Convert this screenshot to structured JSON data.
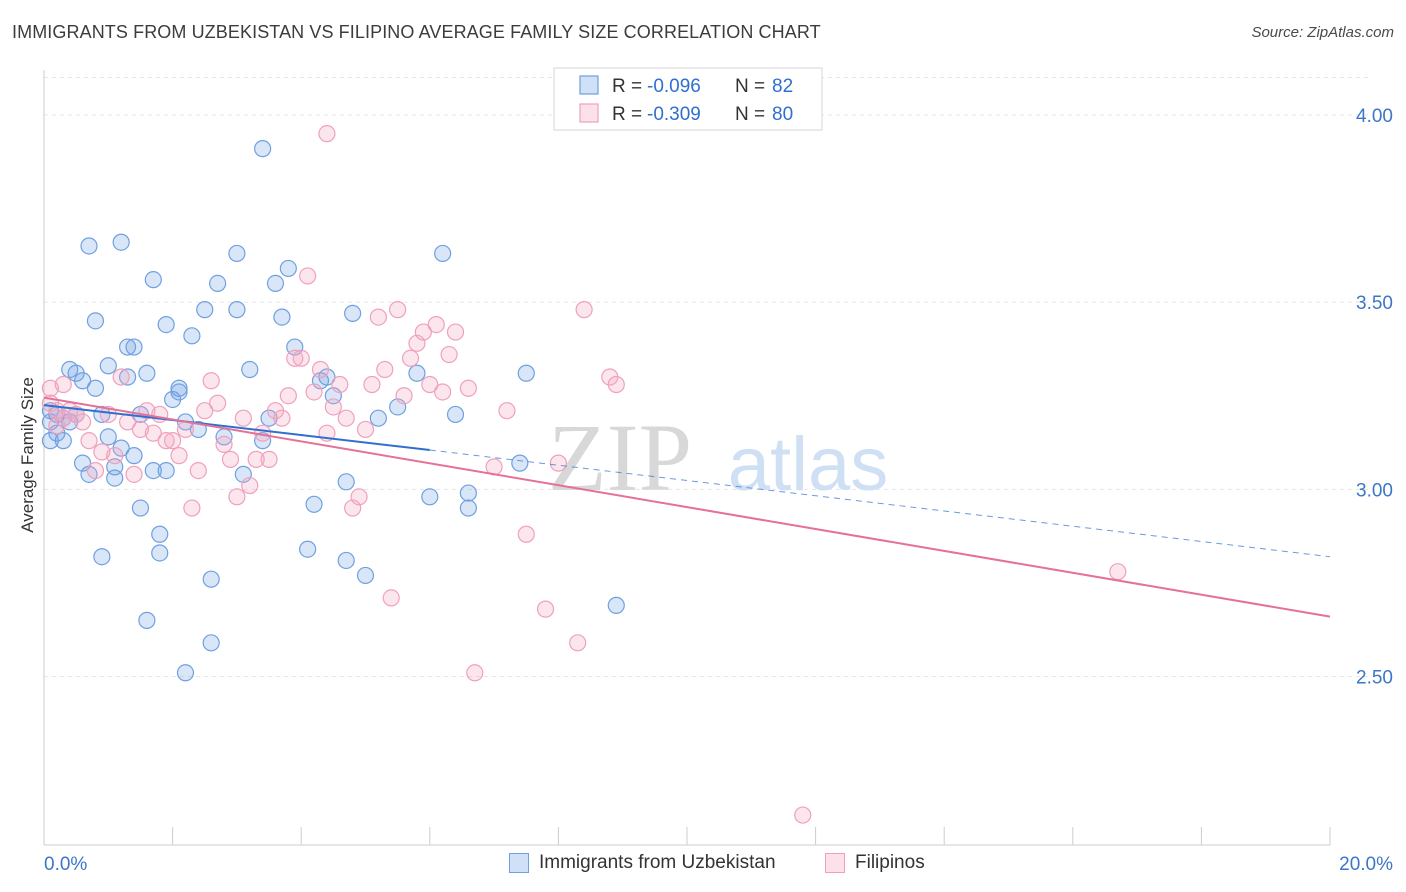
{
  "title": "IMMIGRANTS FROM UZBEKISTAN VS FILIPINO AVERAGE FAMILY SIZE CORRELATION CHART",
  "source": "Source: ZipAtlas.com",
  "watermark": {
    "zip": "ZIP",
    "atlas": "atlas"
  },
  "chart_data": {
    "type": "scatter",
    "ylabel": "Average Family Size",
    "xlim": [
      0,
      0.2
    ],
    "ylim": [
      2.05,
      4.12
    ],
    "x_tick_labels": [
      {
        "x": 0.0,
        "label": "0.0%"
      },
      {
        "x": 0.2,
        "label": "20.0%"
      }
    ],
    "x_minor_ticks": [
      0.02,
      0.04,
      0.06,
      0.08,
      0.1,
      0.12,
      0.14,
      0.16,
      0.18,
      0.2
    ],
    "y_ticks": [
      {
        "y": 4.0,
        "label": "4.00"
      },
      {
        "y": 3.5,
        "label": "3.50"
      },
      {
        "y": 3.0,
        "label": "3.00"
      },
      {
        "y": 2.5,
        "label": "2.50"
      }
    ],
    "grid": true,
    "legend_position": "top-center",
    "series": [
      {
        "name": "Immigrants from Uzbekistan",
        "color": "#6fa0e0",
        "fill": "rgba(120,165,230,0.28)",
        "line_color": "#2f6fd0",
        "R": "-0.096",
        "N": "82",
        "trend": {
          "x0": 0.0,
          "y0": 3.225,
          "x1": 0.06,
          "y1": 3.105,
          "dash_to_x": 0.2,
          "dash_to_y": 2.82
        },
        "points": [
          [
            0.001,
            3.21
          ],
          [
            0.001,
            3.18
          ],
          [
            0.001,
            3.13
          ],
          [
            0.002,
            3.2
          ],
          [
            0.002,
            3.15
          ],
          [
            0.003,
            3.13
          ],
          [
            0.003,
            3.19
          ],
          [
            0.004,
            3.32
          ],
          [
            0.004,
            3.18
          ],
          [
            0.005,
            3.31
          ],
          [
            0.005,
            3.2
          ],
          [
            0.006,
            3.07
          ],
          [
            0.006,
            3.29
          ],
          [
            0.007,
            3.04
          ],
          [
            0.007,
            3.65
          ],
          [
            0.008,
            3.45
          ],
          [
            0.008,
            3.27
          ],
          [
            0.009,
            3.2
          ],
          [
            0.009,
            2.82
          ],
          [
            0.01,
            3.33
          ],
          [
            0.01,
            3.14
          ],
          [
            0.011,
            3.03
          ],
          [
            0.011,
            3.06
          ],
          [
            0.012,
            3.11
          ],
          [
            0.012,
            3.66
          ],
          [
            0.013,
            3.3
          ],
          [
            0.013,
            3.38
          ],
          [
            0.014,
            3.38
          ],
          [
            0.014,
            3.09
          ],
          [
            0.015,
            3.2
          ],
          [
            0.015,
            2.95
          ],
          [
            0.016,
            3.31
          ],
          [
            0.016,
            2.65
          ],
          [
            0.017,
            3.56
          ],
          [
            0.017,
            3.05
          ],
          [
            0.018,
            2.88
          ],
          [
            0.018,
            2.83
          ],
          [
            0.019,
            3.44
          ],
          [
            0.019,
            3.05
          ],
          [
            0.02,
            3.24
          ],
          [
            0.021,
            3.26
          ],
          [
            0.021,
            3.27
          ],
          [
            0.022,
            3.18
          ],
          [
            0.023,
            3.41
          ],
          [
            0.024,
            3.16
          ],
          [
            0.025,
            3.48
          ],
          [
            0.026,
            2.76
          ],
          [
            0.027,
            3.55
          ],
          [
            0.028,
            3.14
          ],
          [
            0.03,
            3.63
          ],
          [
            0.03,
            3.48
          ],
          [
            0.031,
            3.04
          ],
          [
            0.032,
            3.32
          ],
          [
            0.034,
            3.91
          ],
          [
            0.034,
            3.13
          ],
          [
            0.035,
            3.19
          ],
          [
            0.036,
            3.55
          ],
          [
            0.037,
            3.46
          ],
          [
            0.038,
            3.59
          ],
          [
            0.039,
            3.38
          ],
          [
            0.041,
            2.84
          ],
          [
            0.042,
            2.96
          ],
          [
            0.043,
            3.29
          ],
          [
            0.044,
            3.3
          ],
          [
            0.045,
            3.25
          ],
          [
            0.047,
            2.81
          ],
          [
            0.047,
            3.02
          ],
          [
            0.048,
            3.47
          ],
          [
            0.05,
            2.77
          ],
          [
            0.052,
            3.19
          ],
          [
            0.055,
            3.22
          ],
          [
            0.058,
            3.31
          ],
          [
            0.06,
            2.98
          ],
          [
            0.062,
            3.63
          ],
          [
            0.064,
            3.2
          ],
          [
            0.066,
            2.99
          ],
          [
            0.066,
            2.95
          ],
          [
            0.074,
            3.07
          ],
          [
            0.075,
            3.31
          ],
          [
            0.089,
            2.69
          ],
          [
            0.022,
            2.51
          ],
          [
            0.026,
            2.59
          ]
        ]
      },
      {
        "name": "Filipinos",
        "color": "#f0a0bc",
        "fill": "rgba(245,165,195,0.28)",
        "line_color": "#e57098",
        "R": "-0.309",
        "N": "80",
        "trend": {
          "x0": 0.0,
          "y0": 3.245,
          "x1": 0.2,
          "y1": 2.66
        },
        "points": [
          [
            0.001,
            3.27
          ],
          [
            0.001,
            3.23
          ],
          [
            0.002,
            3.21
          ],
          [
            0.002,
            3.17
          ],
          [
            0.003,
            3.28
          ],
          [
            0.003,
            3.19
          ],
          [
            0.004,
            3.21
          ],
          [
            0.005,
            3.2
          ],
          [
            0.006,
            3.18
          ],
          [
            0.007,
            3.13
          ],
          [
            0.008,
            3.05
          ],
          [
            0.009,
            3.1
          ],
          [
            0.01,
            3.2
          ],
          [
            0.011,
            3.09
          ],
          [
            0.012,
            3.3
          ],
          [
            0.013,
            3.18
          ],
          [
            0.014,
            3.04
          ],
          [
            0.015,
            3.16
          ],
          [
            0.016,
            3.21
          ],
          [
            0.017,
            3.15
          ],
          [
            0.018,
            3.2
          ],
          [
            0.019,
            3.13
          ],
          [
            0.02,
            3.13
          ],
          [
            0.021,
            3.09
          ],
          [
            0.022,
            3.16
          ],
          [
            0.023,
            2.95
          ],
          [
            0.024,
            3.05
          ],
          [
            0.025,
            3.21
          ],
          [
            0.026,
            3.29
          ],
          [
            0.027,
            3.23
          ],
          [
            0.028,
            3.12
          ],
          [
            0.029,
            3.08
          ],
          [
            0.03,
            2.98
          ],
          [
            0.031,
            3.19
          ],
          [
            0.032,
            3.01
          ],
          [
            0.033,
            3.08
          ],
          [
            0.034,
            3.15
          ],
          [
            0.035,
            3.08
          ],
          [
            0.036,
            3.21
          ],
          [
            0.037,
            3.19
          ],
          [
            0.038,
            3.25
          ],
          [
            0.039,
            3.35
          ],
          [
            0.04,
            3.35
          ],
          [
            0.041,
            3.57
          ],
          [
            0.042,
            3.26
          ],
          [
            0.043,
            3.32
          ],
          [
            0.044,
            3.15
          ],
          [
            0.045,
            3.22
          ],
          [
            0.046,
            3.28
          ],
          [
            0.047,
            3.19
          ],
          [
            0.048,
            2.95
          ],
          [
            0.049,
            2.98
          ],
          [
            0.05,
            3.16
          ],
          [
            0.051,
            3.28
          ],
          [
            0.052,
            3.46
          ],
          [
            0.053,
            3.32
          ],
          [
            0.054,
            2.71
          ],
          [
            0.055,
            3.48
          ],
          [
            0.056,
            3.25
          ],
          [
            0.057,
            3.35
          ],
          [
            0.058,
            3.39
          ],
          [
            0.059,
            3.42
          ],
          [
            0.06,
            3.28
          ],
          [
            0.061,
            3.44
          ],
          [
            0.062,
            3.26
          ],
          [
            0.063,
            3.36
          ],
          [
            0.064,
            3.42
          ],
          [
            0.066,
            3.27
          ],
          [
            0.067,
            2.51
          ],
          [
            0.07,
            3.06
          ],
          [
            0.072,
            3.21
          ],
          [
            0.075,
            2.88
          ],
          [
            0.078,
            2.68
          ],
          [
            0.08,
            3.07
          ],
          [
            0.083,
            2.59
          ],
          [
            0.084,
            3.48
          ],
          [
            0.088,
            3.3
          ],
          [
            0.089,
            3.28
          ],
          [
            0.118,
            2.13
          ],
          [
            0.167,
            2.78
          ]
        ]
      }
    ],
    "extra_points_filipinos": [
      [
        0.044,
        3.95
      ]
    ]
  },
  "legend": {
    "r_label": "R =",
    "n_label": "N =",
    "rows": [
      {
        "r": "-0.096",
        "n": "82"
      },
      {
        "r": "-0.309",
        "n": "80"
      }
    ]
  },
  "bottom_legend": [
    {
      "label": "Immigrants from Uzbekistan"
    },
    {
      "label": "Filipinos"
    }
  ]
}
